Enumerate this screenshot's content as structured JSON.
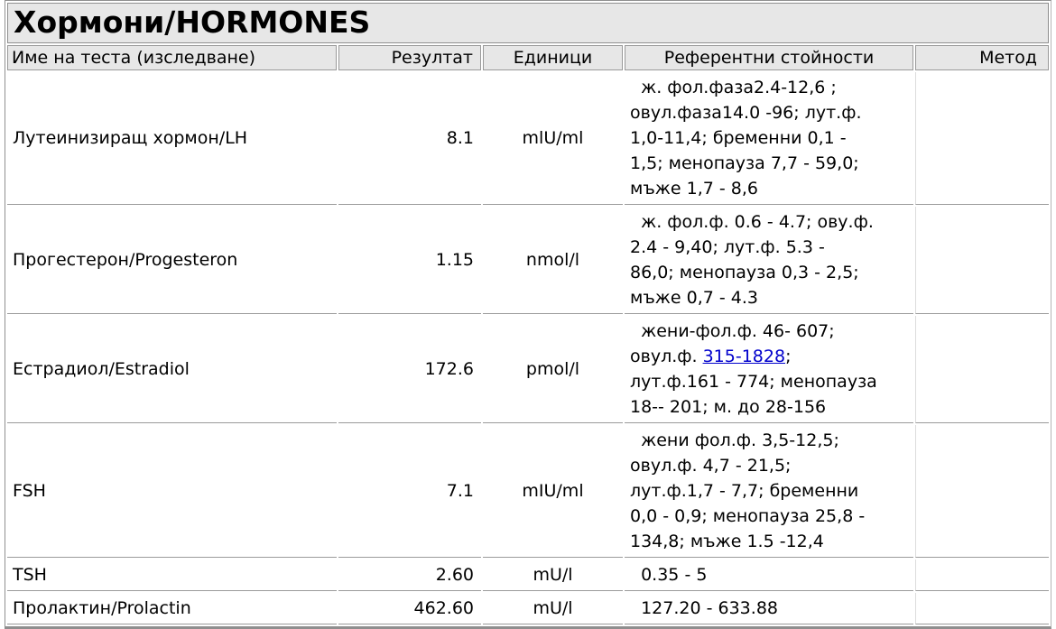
{
  "title": "Хормони/HORMONES",
  "colors": {
    "header_bg": "#e7e7e7",
    "border": "#9b9b9b",
    "link": "#0000cc",
    "text": "#000000"
  },
  "table": {
    "headers": [
      "Име на теста (изследване)",
      "Резултат",
      "Единици",
      "Референтни стойности",
      "Метод"
    ],
    "rows": [
      {
        "name": "Лутеинизиращ хормон/LH",
        "result": "8.1",
        "units": "mlU/ml",
        "ref_pre": "  ж. фол.фаза2.4-12,6 ;\nовул.фаза14.0 -96; лут.ф.\n1,0-11,4; бременни 0,1 -\n1,5; менопауза 7,7 - 59,0;\nмъже 1,7 - 8,6",
        "ref_link": "",
        "ref_post": "",
        "method": ""
      },
      {
        "name": "Прогестерон/Progesteron",
        "result": "1.15",
        "units": "nmol/l",
        "ref_pre": "  ж. фол.ф. 0.6 - 4.7; ову.ф.\n2.4 - 9,40; лут.ф. 5.3 -\n86,0; менопауза 0,3 - 2,5;\nмъже 0,7 - 4.3",
        "ref_link": "",
        "ref_post": "",
        "method": ""
      },
      {
        "name": "Естрадиол/Estradiol",
        "result": "172.6",
        "units": "pmol/l",
        "ref_pre": "  жени-фол.ф. 46- 607;\nовул.ф. ",
        "ref_link": "315-1828",
        "ref_post": ";\nлут.ф.161 - 774; менопауза\n18-- 201; м. до 28-156",
        "method": ""
      },
      {
        "name": "FSH",
        "result": "7.1",
        "units": "mIU/ml",
        "ref_pre": "  жени фол.ф. 3,5-12,5;\nовул.ф. 4,7 - 21,5;\nлут.ф.1,7 - 7,7; бременни\n0,0 - 0,9; менопауза 25,8 -\n134,8; мъже 1.5 -12,4",
        "ref_link": "",
        "ref_post": "",
        "method": ""
      },
      {
        "name": "TSH",
        "result": "2.60",
        "units": "mU/l",
        "ref_pre": "  0.35 - 5",
        "ref_link": "",
        "ref_post": "",
        "method": ""
      },
      {
        "name": "Пролактин/Prolactin",
        "result": "462.60",
        "units": "mU/l",
        "ref_pre": "  127.20 - 633.88",
        "ref_link": "",
        "ref_post": "",
        "method": ""
      }
    ]
  }
}
